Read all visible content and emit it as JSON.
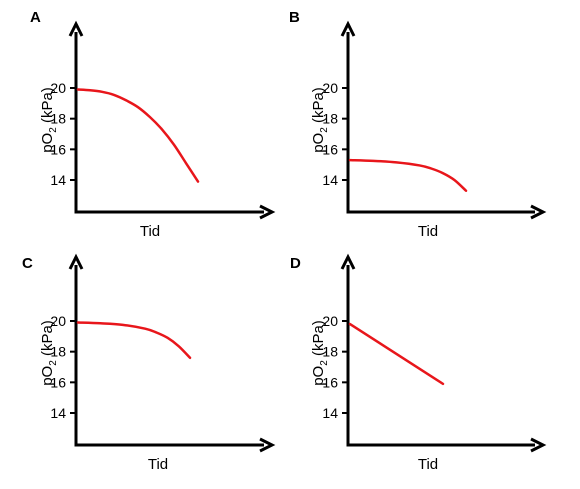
{
  "chart_data": [
    {
      "type": "line",
      "panel": "A",
      "xlabel": "Tid",
      "ylabel": {
        "main": "pO",
        "sub": "2",
        "unit": " (kPa)"
      },
      "yticks": [
        20,
        18,
        16,
        14
      ],
      "x": [
        0.0,
        0.1,
        0.2,
        0.3,
        0.4,
        0.5,
        0.6,
        0.7,
        0.8,
        0.9,
        1.0
      ],
      "y": [
        19.9,
        19.85,
        19.75,
        19.55,
        19.2,
        18.75,
        18.1,
        17.3,
        16.3,
        15.1,
        13.9
      ],
      "color": "#e8161b"
    },
    {
      "type": "line",
      "panel": "B",
      "xlabel": "Tid",
      "ylabel": {
        "main": "pO",
        "sub": "2",
        "unit": " (kPa)"
      },
      "yticks": [
        20,
        18,
        16,
        14
      ],
      "x": [
        0.0,
        0.2,
        0.4,
        0.6,
        0.7,
        0.8,
        0.9,
        1.0
      ],
      "y": [
        15.3,
        15.25,
        15.15,
        14.95,
        14.75,
        14.45,
        14.0,
        13.3
      ],
      "color": "#e8161b"
    },
    {
      "type": "line",
      "panel": "C",
      "xlabel": "Tid",
      "ylabel": {
        "main": "pO",
        "sub": "2",
        "unit": " (kPa)"
      },
      "yticks": [
        20,
        18,
        16,
        14
      ],
      "x": [
        0.0,
        0.2,
        0.4,
        0.6,
        0.7,
        0.8,
        0.9,
        1.0
      ],
      "y": [
        19.9,
        19.85,
        19.75,
        19.5,
        19.25,
        18.9,
        18.35,
        17.6
      ],
      "color": "#e8161b"
    },
    {
      "type": "line",
      "panel": "D",
      "xlabel": "Tid",
      "ylabel": {
        "main": "pO",
        "sub": "2",
        "unit": " (kPa)"
      },
      "yticks": [
        20,
        18,
        16,
        14
      ],
      "x": [
        0.0,
        1.0
      ],
      "y": [
        19.8,
        15.9
      ],
      "color": "#e8161b"
    }
  ]
}
